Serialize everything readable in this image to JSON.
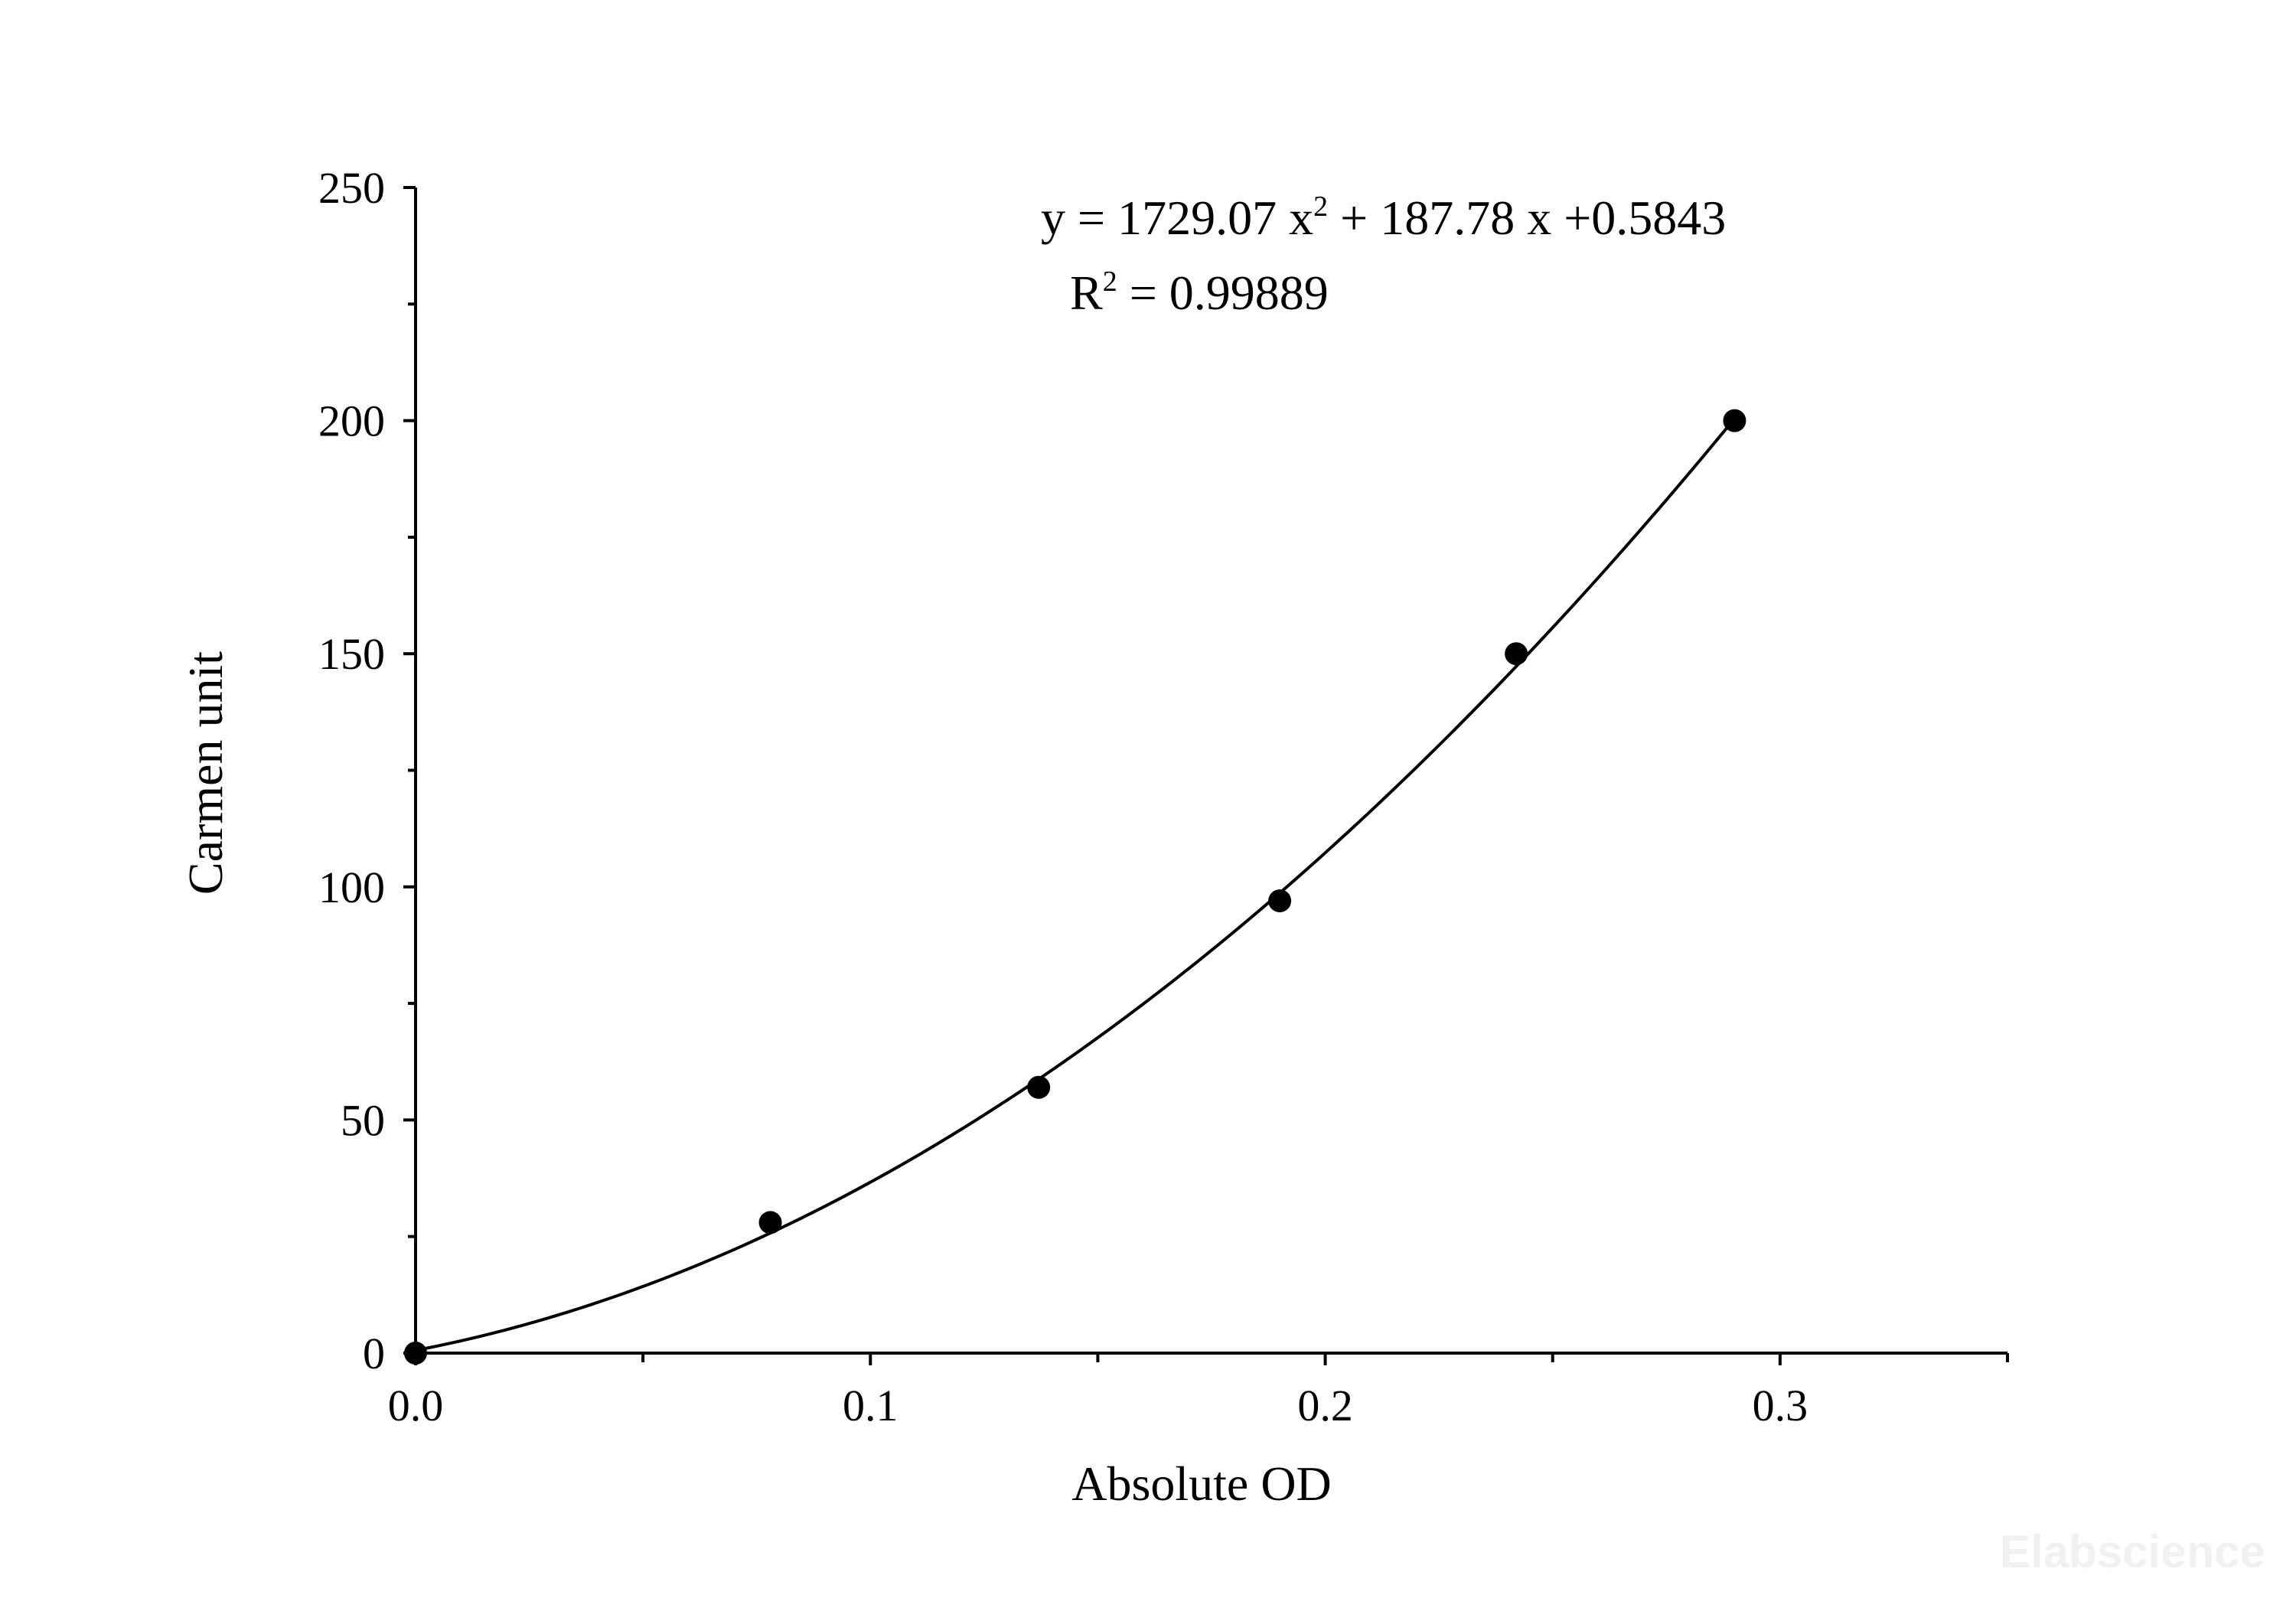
{
  "chart_data": {
    "type": "scatter",
    "title": "",
    "xlabel": "Absolute OD",
    "ylabel": "Carmen unit",
    "xlim": [
      0,
      0.35
    ],
    "ylim": [
      0,
      250
    ],
    "x_ticks": [
      "0.0",
      "0.1",
      "0.2",
      "0.3"
    ],
    "x_tick_values": [
      0,
      0.1,
      0.2,
      0.3
    ],
    "x_minor_tick_values": [
      0.05,
      0.15,
      0.25,
      0.35
    ],
    "y_ticks": [
      "0",
      "50",
      "100",
      "150",
      "200",
      "250"
    ],
    "y_tick_values": [
      0,
      50,
      100,
      150,
      200,
      250
    ],
    "y_minor_tick_values": [
      25,
      75,
      125,
      175,
      225
    ],
    "grid": false,
    "series": [
      {
        "x": [
          0.0,
          0.078,
          0.137,
          0.19,
          0.242,
          0.29
        ],
        "y": [
          0,
          28,
          57,
          97,
          150,
          200
        ],
        "marker": "filled-circle",
        "color": "#000000"
      }
    ],
    "fit": {
      "type": "polynomial",
      "coefficients": {
        "a": 1729.07,
        "b": 187.78,
        "c": 0.5843
      },
      "x_range": [
        0,
        0.29
      ],
      "color": "#000000"
    },
    "annotation": {
      "eq_prefix": "y = 1729.07 x",
      "eq_exp": "2",
      "eq_suffix": " + 187.78 x +0.5843",
      "r_prefix": "R",
      "r_exp": "2",
      "r_suffix": " = 0.99889"
    }
  },
  "watermark": "Elabscience"
}
